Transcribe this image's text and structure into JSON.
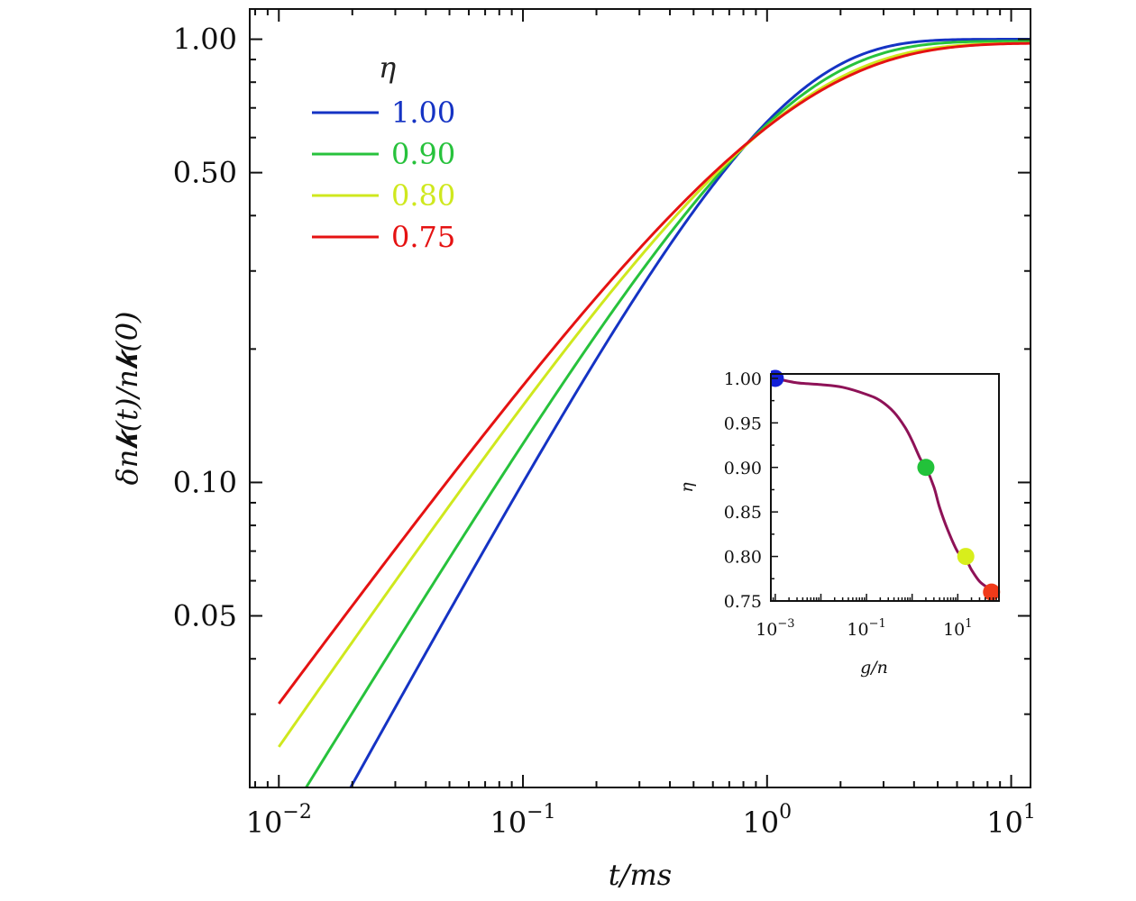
{
  "chart_data": [
    {
      "type": "line",
      "xlabel_italic": "t",
      "xlabel_rest": "/ms",
      "ylabel": "δn𝒌(t)/n𝒌(0)",
      "xscale": "log",
      "yscale": "log",
      "xlim": [
        0.0076,
        12
      ],
      "ylim": [
        0.0205,
        1.17
      ],
      "x_ticks": [
        0.01,
        0.1,
        1,
        10
      ],
      "x_tick_labels": [
        [
          "10",
          "−2"
        ],
        [
          "10",
          "−1"
        ],
        [
          "10",
          "0"
        ],
        [
          "10",
          "1"
        ]
      ],
      "y_ticks": [
        0.05,
        0.1,
        0.5,
        1.0
      ],
      "y_tick_labels": [
        "0.05",
        "0.10",
        "0.50",
        "1.00"
      ],
      "legend": {
        "title": "η",
        "position": "top-left",
        "entries": [
          "1.00",
          "0.90",
          "0.80",
          "0.75"
        ]
      },
      "series": [
        {
          "name": "1.00",
          "color": "#1533c4",
          "alpha": 1.0,
          "A": 1.0
        },
        {
          "name": "0.90",
          "color": "#27c23c",
          "alpha": 0.9,
          "A": 0.99
        },
        {
          "name": "0.80",
          "color": "#cfe81e",
          "alpha": 0.8,
          "A": 0.98
        },
        {
          "name": "0.75",
          "color": "#e51212",
          "alpha": 0.75,
          "A": 0.98
        }
      ],
      "curve_model": "y = A * (1 - exp(-(x / 0.95)^alpha)), x in [0.01, 12]"
    },
    {
      "type": "line",
      "position": "inset, bottom-right",
      "xlabel": "g/n",
      "ylabel": "η",
      "xscale": "log",
      "xlim": [
        0.0008,
        80
      ],
      "ylim": [
        0.75,
        1.005
      ],
      "x_ticks": [
        0.001,
        0.1,
        10
      ],
      "x_tick_labels": [
        [
          "10",
          "−3"
        ],
        [
          "10",
          "−1"
        ],
        [
          "10",
          "1"
        ]
      ],
      "y_ticks": [
        0.75,
        0.8,
        0.85,
        0.9,
        0.95,
        1.0
      ],
      "y_tick_labels": [
        "0.75",
        "0.80",
        "0.85",
        "0.90",
        "0.95",
        "1.00"
      ],
      "line_color": "#8e1257",
      "curve": {
        "x": [
          0.001,
          0.003,
          0.01,
          0.03,
          0.1,
          0.2,
          0.4,
          0.7,
          1.0,
          1.5,
          2.0,
          3.0,
          4.0,
          6.0,
          10,
          15,
          20,
          30,
          45,
          60
        ],
        "y": [
          1.0,
          0.995,
          0.993,
          0.99,
          0.982,
          0.975,
          0.962,
          0.945,
          0.93,
          0.91,
          0.9,
          0.878,
          0.855,
          0.83,
          0.805,
          0.797,
          0.785,
          0.772,
          0.765,
          0.76
        ]
      },
      "points": [
        {
          "x": 0.001,
          "y": 1.0,
          "color": "#1320d8"
        },
        {
          "x": 2.0,
          "y": 0.9,
          "color": "#22c23a"
        },
        {
          "x": 15,
          "y": 0.8,
          "color": "#d8ee1c"
        },
        {
          "x": 55,
          "y": 0.76,
          "color": "#f03a1a"
        }
      ]
    }
  ]
}
